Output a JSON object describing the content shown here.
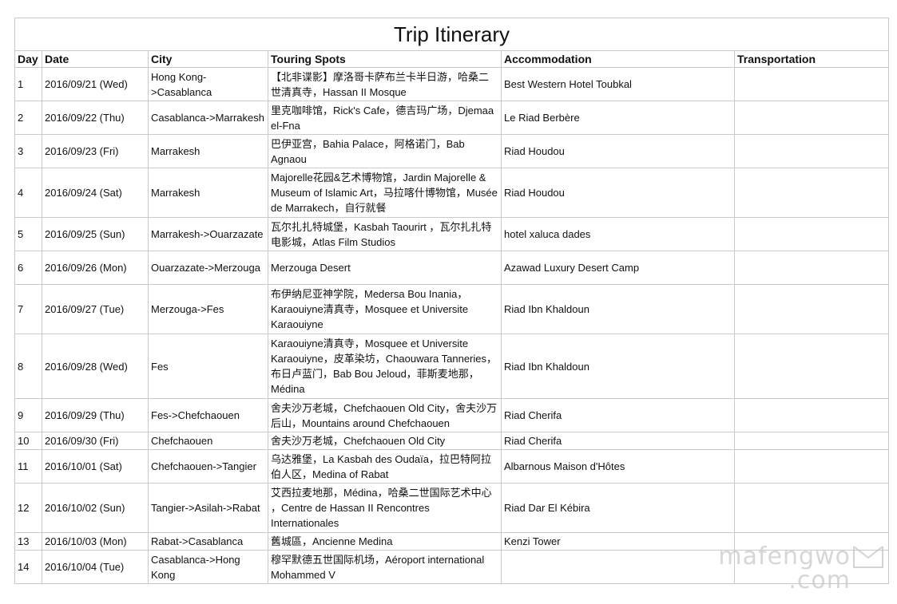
{
  "title": "Trip Itinerary",
  "columns": [
    "Day",
    "Date",
    "City",
    "Touring Spots",
    "Accommodation",
    "Transportation"
  ],
  "rows": [
    {
      "day": "1",
      "date": "2016/09/21 (Wed)",
      "city": "Hong Kong->Casablanca",
      "spots": "【北非谍影】摩洛哥卡萨布兰卡半日游，哈桑二世清真寺，Hassan II Mosque",
      "acc": "Best Western Hotel Toubkal",
      "trans": ""
    },
    {
      "day": "2",
      "date": "2016/09/22 (Thu)",
      "city": "Casablanca->Marrakesh",
      "spots": "里克咖啡馆，Rick's Cafe，德吉玛广场，Djemaa el-Fna",
      "acc": "Le Riad Berbère",
      "trans": ""
    },
    {
      "day": "3",
      "date": "2016/09/23 (Fri)",
      "city": "Marrakesh",
      "spots": "巴伊亚宫，Bahia Palace，阿格诺门，Bab Agnaou",
      "acc": "Riad Houdou",
      "trans": ""
    },
    {
      "day": "4",
      "date": "2016/09/24 (Sat)",
      "city": "Marrakesh",
      "spots": "Majorelle花园&艺术博物馆，Jardin Majorelle & Museum of Islamic Art，马拉喀什博物馆，Musée de Marrakech，自行就餐",
      "acc": "Riad Houdou",
      "trans": ""
    },
    {
      "day": "5",
      "date": "2016/09/25 (Sun)",
      "city": "Marrakesh->Ouarzazate",
      "spots": "瓦尔扎扎特城堡，Kasbah Taourirt ，瓦尔扎扎特电影城，Atlas Film Studios",
      "acc": "hotel xaluca dades",
      "trans": ""
    },
    {
      "day": "6",
      "date": "2016/09/26 (Mon)",
      "city": "Ouarzazate->Merzouga",
      "spots": "Merzouga Desert",
      "acc": "Azawad Luxury Desert Camp",
      "trans": ""
    },
    {
      "day": "7",
      "date": "2016/09/27 (Tue)",
      "city": "Merzouga->Fes",
      "spots": "布伊纳尼亚神学院，Medersa Bou Inania，Karaouiyne清真寺，Mosquee et Universite Karaouiyne",
      "acc": "Riad Ibn Khaldoun",
      "trans": ""
    },
    {
      "day": "8",
      "date": "2016/09/28 (Wed)",
      "city": "Fes",
      "spots": "Karaouiyne清真寺，Mosquee et Universite Karaouiyne，皮革染坊，Chaouwara Tanneries，布日卢蓝门，Bab Bou Jeloud，菲斯麦地那，Médina",
      "acc": "Riad Ibn Khaldoun",
      "trans": ""
    },
    {
      "day": "9",
      "date": "2016/09/29 (Thu)",
      "city": "Fes->Chefchaouen",
      "spots": "舍夫沙万老城，Chefchaouen Old City，舍夫沙万后山，Mountains around Chefchaouen",
      "acc": "Riad Cherifa",
      "trans": ""
    },
    {
      "day": "10",
      "date": "2016/09/30 (Fri)",
      "city": "Chefchaouen",
      "spots": "舍夫沙万老城，Chefchaouen Old City",
      "acc": "Riad Cherifa",
      "trans": ""
    },
    {
      "day": "11",
      "date": "2016/10/01 (Sat)",
      "city": "Chefchaouen->Tangier",
      "spots": "乌达雅堡，La Kasbah des Oudaïa，拉巴特阿拉伯人区，Medina of Rabat",
      "acc": "Albarnous Maison d'Hôtes",
      "trans": ""
    },
    {
      "day": "12",
      "date": "2016/10/02 (Sun)",
      "city": "Tangier->Asilah->Rabat",
      "spots": "艾西拉麦地那，Médina，哈桑二世国际艺术中心 ，Centre de Hassan II Rencontres Internationales",
      "acc": "Riad Dar El Kébira",
      "trans": ""
    },
    {
      "day": "13",
      "date": "2016/10/03 (Mon)",
      "city": "Rabat->Casablanca",
      "spots": "舊城區，Ancienne Medina",
      "acc": "Kenzi Tower",
      "trans": ""
    },
    {
      "day": "14",
      "date": "2016/10/04 (Tue)",
      "city": "Casablanca->Hong Kong",
      "spots": "穆罕默德五世国际机场，Aéroport international Mohammed V",
      "acc": "",
      "trans": ""
    }
  ],
  "watermark": {
    "line1": "mafengwo",
    "line2": ".com"
  }
}
